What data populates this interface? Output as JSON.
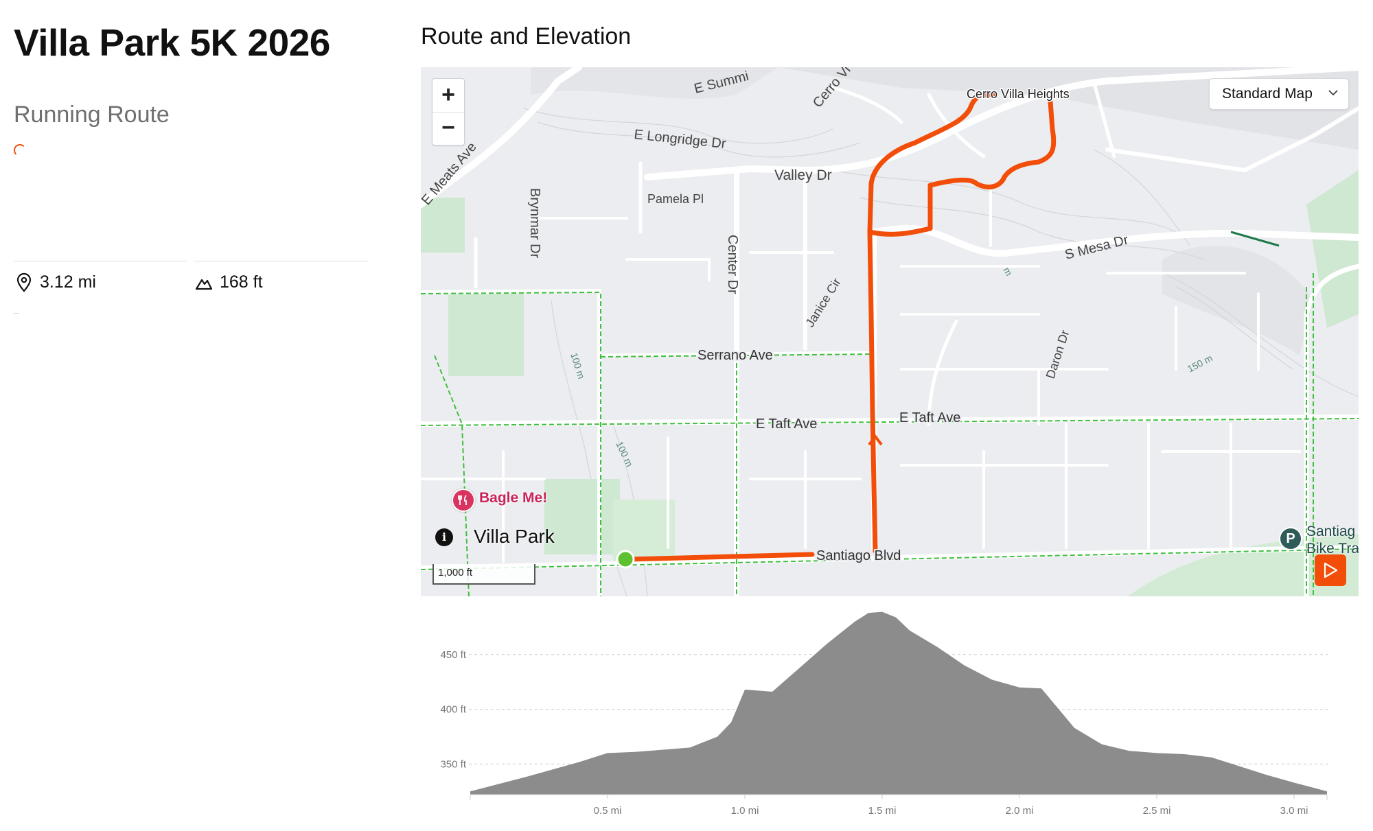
{
  "event": {
    "title": "Villa Park 5K 2026",
    "route_type": "Running Route"
  },
  "stats": {
    "distance": "3.12 mi",
    "distance_icon": "location-pin-icon",
    "elevation_gain": "168 ft",
    "elevation_icon": "mountain-icon"
  },
  "section": {
    "title": "Route and Elevation"
  },
  "map": {
    "zoom_in_label": "+",
    "zoom_out_label": "−",
    "style_selector": "Standard Map",
    "info_label": "i",
    "city_label": "Villa Park",
    "scale_label": "1,000 ft",
    "street_labels": {
      "e_summit": "E Summi",
      "cerro_vi": "Cerro Vi",
      "cerro_villa_heights": "Cerro Villa Heights",
      "e_meats_ave": "E Meats Ave",
      "e_longridge_dr": "E Longridge Dr",
      "valley_dr": "Valley Dr",
      "pamela_pl": "Pamela Pl",
      "brynmar_dr": "Brynmar Dr",
      "center_dr": "Center Dr",
      "s_mesa_dr": "S Mesa Dr",
      "janice_cir": "Janice Cir",
      "serrano_ave": "Serrano Ave",
      "e_taft_ave_1": "E Taft Ave",
      "e_taft_ave_2": "E Taft Ave",
      "daron_dr": "Daron Dr",
      "santiago_blvd": "Santiago Blvd"
    },
    "contour_labels": {
      "c100a": "100 m",
      "c100b": "100 m",
      "c150": "150 m",
      "cm": "m"
    },
    "poi": {
      "restaurant": "Bagle Me!",
      "restaurant_icon": "fork-knife-icon",
      "parking_icon_text": "P",
      "parking_line1": "Santiag",
      "parking_line2": "Bike Tra"
    },
    "colors": {
      "route": "#f24e0a",
      "start_marker": "#5cc02f",
      "bike_path": "#3fbf3f",
      "park": "#cfe8d2",
      "road": "#ffffff"
    }
  },
  "elevation_profile": {
    "y_ticks": [
      "350 ft",
      "400 ft",
      "450 ft"
    ],
    "x_ticks": [
      "0.5 mi",
      "1.0 mi",
      "1.5 mi",
      "2.0 mi",
      "2.5 mi",
      "3.0 mi"
    ],
    "fill_color": "#8c8c8c"
  },
  "chart_data": {
    "type": "area",
    "title": "",
    "xlabel": "",
    "ylabel": "",
    "xlim": [
      0,
      3.12
    ],
    "ylim": [
      322,
      490
    ],
    "x": [
      0.0,
      0.2,
      0.4,
      0.5,
      0.6,
      0.7,
      0.8,
      0.9,
      0.95,
      1.0,
      1.1,
      1.2,
      1.3,
      1.4,
      1.45,
      1.5,
      1.55,
      1.6,
      1.7,
      1.8,
      1.9,
      2.0,
      2.08,
      2.15,
      2.2,
      2.3,
      2.4,
      2.5,
      2.6,
      2.7,
      2.8,
      2.9,
      3.0,
      3.12
    ],
    "series": [
      {
        "values": [
          325,
          338,
          352,
          360,
          361,
          363,
          365,
          375,
          388,
          418,
          416,
          438,
          460,
          480,
          488,
          489,
          484,
          472,
          457,
          440,
          427,
          420,
          419,
          398,
          383,
          368,
          362,
          360,
          359,
          356,
          348,
          340,
          333,
          325
        ]
      }
    ]
  }
}
